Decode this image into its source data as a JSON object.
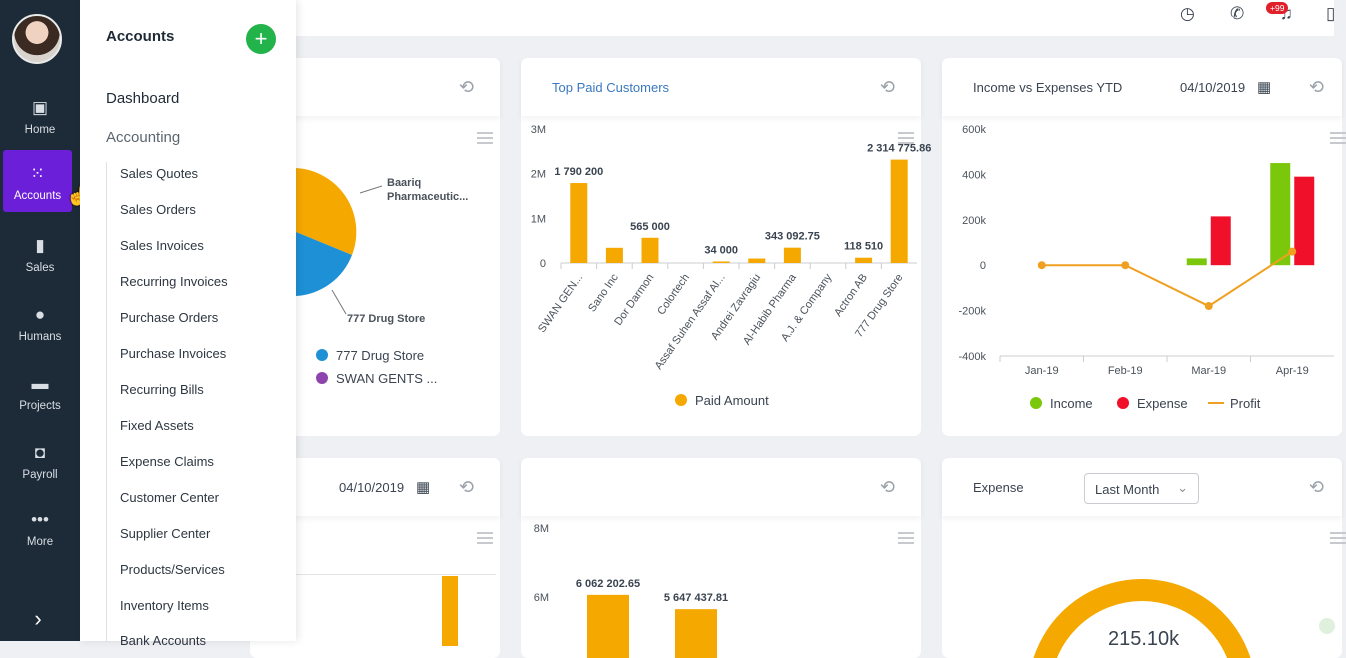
{
  "rail": {
    "items": [
      {
        "icon": "home-icon",
        "glyph": "▣",
        "label": "Home"
      },
      {
        "icon": "accounts-grid-icon",
        "glyph": "⁙",
        "label": "Accounts"
      },
      {
        "icon": "sales-bar-icon",
        "glyph": "▮",
        "label": "Sales"
      },
      {
        "icon": "humans-person-icon",
        "glyph": "●",
        "label": "Humans"
      },
      {
        "icon": "projects-icon",
        "glyph": "▬",
        "label": "Projects"
      },
      {
        "icon": "payroll-wallet-icon",
        "glyph": "◘",
        "label": "Payroll"
      },
      {
        "icon": "more-dots-icon",
        "glyph": "•••",
        "label": "More"
      }
    ],
    "expand_glyph": "›"
  },
  "subnav": {
    "title": "Accounts",
    "add_glyph": "+",
    "dashboard": "Dashboard",
    "accounting": "Accounting",
    "items": [
      "Sales Quotes",
      "Sales Orders",
      "Sales Invoices",
      "Recurring Invoices",
      "Purchase Orders",
      "Purchase Invoices",
      "Recurring Bills",
      "Fixed Assets",
      "Expense Claims",
      "Customer Center",
      "Supplier Center",
      "Products/Services",
      "Inventory Items",
      "Bank Accounts"
    ]
  },
  "topbar": {
    "badge": "+99"
  },
  "icons": {
    "refresh": "⟲",
    "calendar": "▦",
    "chevron": "⌄"
  },
  "cards": {
    "pie": {
      "callout1": "Baariq",
      "callout1b": "Pharmaceutic...",
      "callout2": "777 Drug Store",
      "legend": [
        {
          "label": "777 Drug Store",
          "color": "#1e90d6"
        },
        {
          "label": "SWAN GENTS ...",
          "color": "#8e44ad"
        }
      ]
    },
    "top_paid": {
      "title": "Top Paid Customers",
      "legend": "Paid Amount",
      "color": "#f5a800"
    },
    "income": {
      "title": "Income vs Expenses YTD",
      "date": "04/10/2019",
      "legend": [
        {
          "label": "Income",
          "color": "#7ac70c"
        },
        {
          "label": "Expense",
          "color": "#f0102a"
        },
        {
          "label": "Profit",
          "color": "#f0a020"
        }
      ]
    },
    "bottom_left": {
      "date": "04/10/2019"
    },
    "expense": {
      "title": "Expense",
      "dropdown": "Last Month",
      "center_value": "215.10k"
    }
  },
  "chart_data": [
    {
      "type": "bar",
      "title": "Top Paid Customers",
      "categories": [
        "SWAN GEN...",
        "Sano Inc",
        "Dor Darmon",
        "Colortech",
        "Assaf Suhen Assaf Al...",
        "Andrei Zavragiu",
        "Al-Habib Pharma",
        "A.J. & Company",
        "Actron AB",
        "777 Drug Store"
      ],
      "values": [
        1790200,
        340000,
        565000,
        0,
        34000,
        100000,
        343092.75,
        0,
        118510,
        2314775.86
      ],
      "data_labels": [
        "1 790 200",
        "",
        "565 000",
        "",
        "34 000",
        "",
        "343 092.75",
        "",
        "118 510",
        "2 314 775.86"
      ],
      "yticks": [
        "0",
        "1M",
        "2M",
        "3M"
      ],
      "ylim": [
        0,
        3000000
      ],
      "legend": [
        "Paid Amount"
      ]
    },
    {
      "type": "bar",
      "title": "Income vs Expenses YTD",
      "categories": [
        "Jan-19",
        "Feb-19",
        "Mar-19",
        "Apr-19"
      ],
      "series": [
        {
          "name": "Income",
          "values": [
            0,
            0,
            30000,
            450000
          ]
        },
        {
          "name": "Expense",
          "values": [
            0,
            0,
            215000,
            390000
          ]
        },
        {
          "name": "Profit",
          "values": [
            0,
            0,
            -180000,
            60000
          ]
        }
      ],
      "yticks": [
        "-400k",
        "-200k",
        "0",
        "200k",
        "400k",
        "600k"
      ],
      "ylim": [
        -400000,
        600000
      ]
    },
    {
      "type": "bar",
      "categories": [
        "",
        ""
      ],
      "values": [
        6062202.65,
        5647437.81
      ],
      "data_labels": [
        "6 062 202.65",
        "5 647 437.81"
      ],
      "yticks": [
        "6M",
        "8M"
      ]
    }
  ]
}
